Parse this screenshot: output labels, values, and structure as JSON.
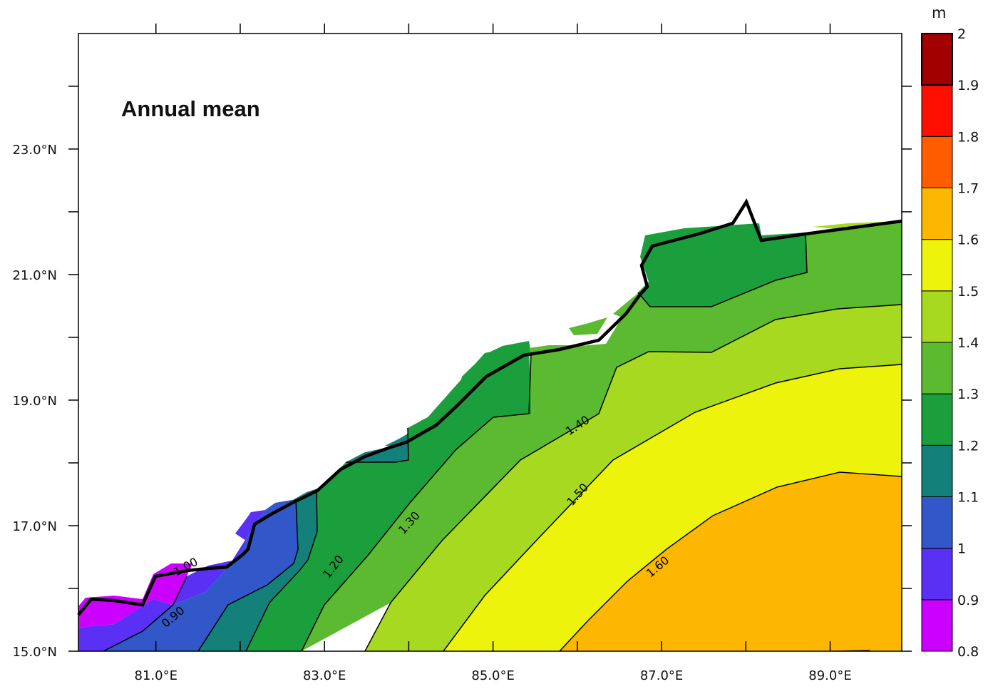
{
  "chart_data": {
    "type": "heatmap",
    "title": "Annual mean",
    "units": "m",
    "x_ticks": [
      {
        "value": 81,
        "label": "81.0°E"
      },
      {
        "value": 83,
        "label": "83.0°E"
      },
      {
        "value": 85,
        "label": "85.0°E"
      },
      {
        "value": 87,
        "label": "87.0°E"
      },
      {
        "value": 89,
        "label": "89.0°E"
      }
    ],
    "y_ticks": [
      {
        "value": 15,
        "label": "15.0°N"
      },
      {
        "value": 17,
        "label": "17.0°N"
      },
      {
        "value": 19,
        "label": "19.0°N"
      },
      {
        "value": 21,
        "label": "21.0°N"
      },
      {
        "value": 23,
        "label": "23.0°N"
      }
    ],
    "xlim": [
      80.08,
      89.85
    ],
    "ylim": [
      15.0,
      24.84
    ],
    "colorbar": {
      "levels": [
        "0.8",
        "0.9",
        "1",
        "1.1",
        "1.2",
        "1.3",
        "1.4",
        "1.5",
        "1.6",
        "1.7",
        "1.8",
        "1.9",
        "2"
      ],
      "colors": [
        "#cc00ff",
        "#5a30f5",
        "#3257c8",
        "#13807a",
        "#1b9e3c",
        "#5bba30",
        "#a6d91f",
        "#eef30b",
        "#fdb700",
        "#ff5c00",
        "#ff0f00",
        "#a20000"
      ]
    },
    "contour_labels": [
      {
        "text": "0.90",
        "lon": 81.2,
        "lat": 15.55,
        "angle": -40
      },
      {
        "text": "1.00",
        "lon": 81.35,
        "lat": 16.35,
        "angle": -28
      },
      {
        "text": "1.20",
        "lon": 83.1,
        "lat": 16.35,
        "angle": -52
      },
      {
        "text": "1.30",
        "lon": 84.0,
        "lat": 17.05,
        "angle": -48
      },
      {
        "text": "1.40",
        "lon": 86.0,
        "lat": 18.6,
        "angle": -33
      },
      {
        "text": "1.50",
        "lon": 86.0,
        "lat": 17.5,
        "angle": -48
      },
      {
        "text": "1.60",
        "lon": 86.95,
        "lat": 16.35,
        "angle": -40
      }
    ],
    "grid": false,
    "legend": "right colorbar"
  }
}
